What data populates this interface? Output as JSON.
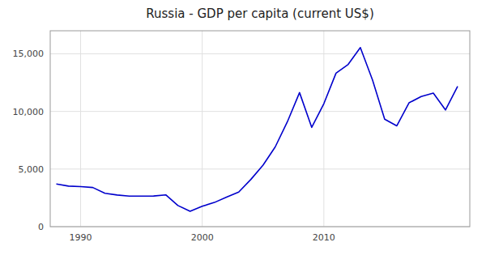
{
  "chart_data": {
    "type": "line",
    "title": "Russia - GDP per capita (current US$)",
    "x": [
      1988,
      1989,
      1990,
      1991,
      1992,
      1993,
      1994,
      1995,
      1996,
      1997,
      1998,
      1999,
      2000,
      2001,
      2002,
      2003,
      2004,
      2005,
      2006,
      2007,
      2008,
      2009,
      2010,
      2011,
      2012,
      2013,
      2014,
      2015,
      2016,
      2017,
      2018,
      2019,
      2020,
      2021
    ],
    "values": [
      3700,
      3520,
      3480,
      3400,
      2900,
      2750,
      2650,
      2650,
      2660,
      2760,
      1836,
      1330,
      1772,
      2100,
      2560,
      3000,
      4100,
      5338,
      6920,
      9101,
      11635,
      8615,
      10675,
      13324,
      14079,
      15543,
      12736,
      9329,
      8748,
      10743,
      11289,
      11585,
      10127,
      12172
    ],
    "color": "#0000CC",
    "xlim": [
      1987.5,
      2022.0
    ],
    "ylim": [
      0,
      17000
    ],
    "xticks": [
      1990,
      2000,
      2010
    ],
    "yticks": [
      0,
      {
        "value": 5000,
        "label": "5,000"
      },
      {
        "value": 10000,
        "label": "10,000"
      },
      {
        "value": 15000,
        "label": "15,000"
      }
    ],
    "grid": true
  }
}
